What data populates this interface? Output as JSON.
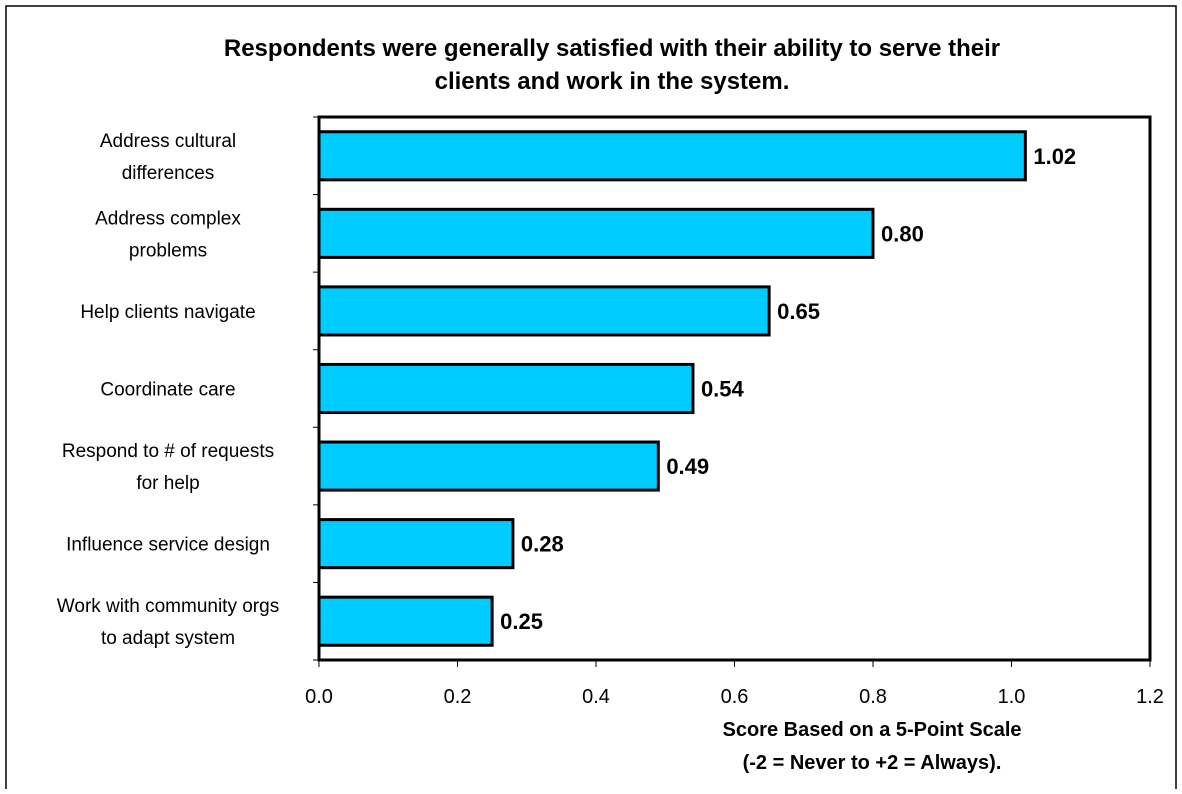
{
  "chart_data": {
    "type": "bar",
    "orientation": "horizontal",
    "title_lines": [
      "Respondents were generally satisfied with their ability to serve their",
      "clients and work in the system."
    ],
    "categories": [
      [
        "Address cultural",
        "differences"
      ],
      [
        "Address complex",
        "problems"
      ],
      [
        "Help clients navigate"
      ],
      [
        "Coordinate care"
      ],
      [
        "Respond to # of requests",
        "for help"
      ],
      [
        "Influence service design"
      ],
      [
        "Work with community orgs",
        "to adapt system"
      ]
    ],
    "values": [
      1.02,
      0.8,
      0.65,
      0.54,
      0.49,
      0.28,
      0.25
    ],
    "value_labels": [
      "1.02",
      "0.80",
      "0.65",
      "0.54",
      "0.49",
      "0.28",
      "0.25"
    ],
    "xlim": [
      0,
      1.2
    ],
    "xticks": [
      0.0,
      0.2,
      0.4,
      0.6,
      0.8,
      1.0,
      1.2
    ],
    "xtick_labels": [
      "0.0",
      "0.2",
      "0.4",
      "0.6",
      "0.8",
      "1.0",
      "1.2"
    ],
    "xlabel_lines": [
      "Score Based on a 5-Point Scale",
      "(-2 = Never to +2 = Always)."
    ],
    "grid": false,
    "legend": "none",
    "bar_color": "#00CCFF",
    "bar_edge_color": "#000000"
  }
}
